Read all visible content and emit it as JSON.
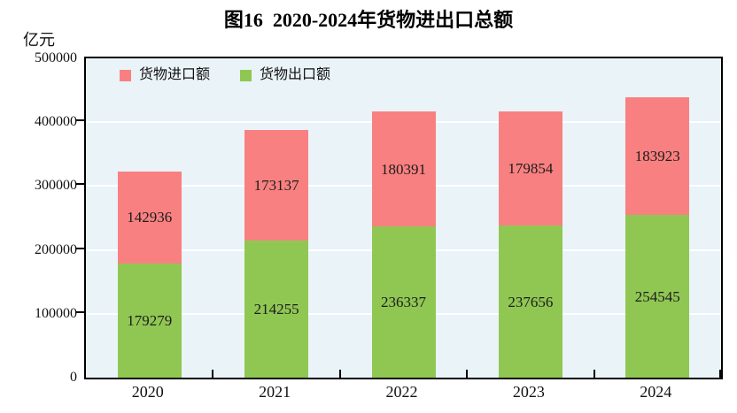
{
  "title": "图16  2020-2024年货物进出口总额",
  "y_unit_label": "亿元",
  "chart_data": {
    "type": "bar",
    "stacked": true,
    "title": "图16  2020-2024年货物进出口总额",
    "ylabel": "亿元",
    "categories": [
      "2020",
      "2021",
      "2022",
      "2023",
      "2024"
    ],
    "series": [
      {
        "name": "货物出口额",
        "color": "#90c753",
        "values": [
          179279,
          214255,
          236337,
          237656,
          254545
        ]
      },
      {
        "name": "货物进口额",
        "color": "#f98080",
        "values": [
          142936,
          173137,
          180391,
          179854,
          183923
        ]
      }
    ],
    "legend": [
      {
        "label": "货物进口额",
        "color": "#f98080"
      },
      {
        "label": "货物出口额",
        "color": "#90c753"
      }
    ],
    "legend_position": "top-left-inside",
    "ylim": [
      0,
      500000
    ],
    "yticks": [
      0,
      100000,
      200000,
      300000,
      400000,
      500000
    ],
    "grid": true,
    "plot_background": "#eaf3f8",
    "gridline_color": "#ffffff"
  }
}
